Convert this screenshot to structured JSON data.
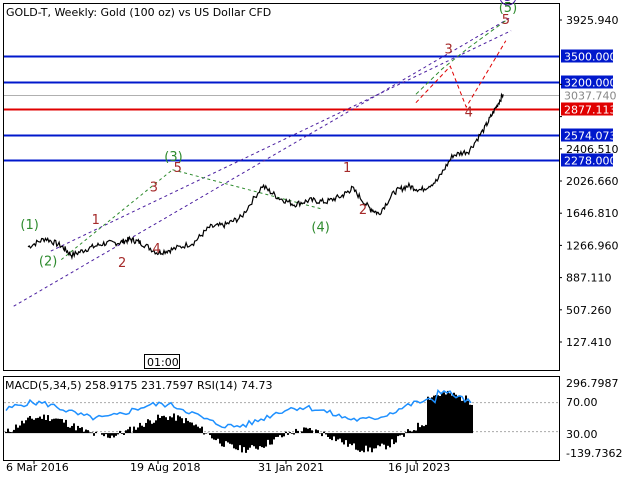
{
  "header": {
    "title": "GOLD-T, Weekly:  Gold (100 oz) vs US Dollar CFD"
  },
  "timer": "01:00",
  "colors": {
    "levels_blue": "#0018cc",
    "level_red": "#e00000",
    "wave_red": "#a52a2a",
    "wave_green": "#2e8b2e",
    "wave_purple": "#4b1fa0",
    "rsi": "#1e90ff",
    "macd": "#000000"
  },
  "chart_data": [
    {
      "type": "line",
      "title": "GOLD-T, Weekly:  Gold (100 oz) vs US Dollar CFD",
      "x_axis_labels": [
        "6 Mar 2016",
        "19 Aug 2018",
        "31 Jan 2021",
        "16 Jul 2023"
      ],
      "y_ticks": [
        3925.94,
        3166.81,
        2786.36,
        2406.51,
        2026.66,
        1646.81,
        1266.96,
        887.11,
        507.26,
        127.41
      ],
      "y_tick_labels": [
        "3925.940",
        "3166.810",
        "2786.360",
        "2406.510",
        "2026.660",
        "1646.810",
        "1266.960",
        "887.110",
        "507.260",
        "127.410"
      ],
      "ylim": [
        -100,
        4250
      ],
      "grid": false,
      "price_path": {
        "x": [
          2016.17,
          2016.5,
          2016.8,
          2017.0,
          2017.3,
          2017.6,
          2017.9,
          2018.1,
          2018.3,
          2018.62,
          2018.9,
          2019.3,
          2019.6,
          2019.9,
          2020.2,
          2020.6,
          2020.9,
          2021.2,
          2021.5,
          2021.8,
          2022.1,
          2022.3,
          2022.6,
          2022.8,
          2023.1,
          2023.35,
          2023.6,
          2023.9,
          2024.2,
          2024.5,
          2024.8,
          2025.0,
          2025.15
        ],
        "y": [
          1250,
          1350,
          1260,
          1150,
          1230,
          1290,
          1300,
          1340,
          1300,
          1180,
          1220,
          1300,
          1480,
          1510,
          1600,
          1970,
          1830,
          1750,
          1800,
          1780,
          1850,
          1940,
          1720,
          1640,
          1900,
          1970,
          1920,
          2030,
          2330,
          2380,
          2650,
          2880,
          3050
        ]
      },
      "levels": [
        {
          "label": "3500.000",
          "value": 3500,
          "color": "blue"
        },
        {
          "label": "3200.000",
          "value": 3200,
          "color": "blue"
        },
        {
          "label": "3037.740",
          "value": 3037.74,
          "color": "grey"
        },
        {
          "label": "2877.113",
          "value": 2877.113,
          "color": "red"
        },
        {
          "label": "2574.073",
          "value": 2574.073,
          "color": "blue"
        },
        {
          "label": "2278.000",
          "value": 2278,
          "color": "blue"
        }
      ],
      "wave_labels": [
        {
          "text": "(1)",
          "color": "green",
          "x": 2016.2,
          "y": 1460
        },
        {
          "text": "(2)",
          "color": "green",
          "x": 2016.55,
          "y": 1030
        },
        {
          "text": "1",
          "color": "red",
          "x": 2017.45,
          "y": 1520
        },
        {
          "text": "2",
          "color": "red",
          "x": 2017.95,
          "y": 1010
        },
        {
          "text": "3",
          "color": "red",
          "x": 2018.55,
          "y": 1900
        },
        {
          "text": "4",
          "color": "red",
          "x": 2018.6,
          "y": 1180
        },
        {
          "text": "(3)",
          "color": "green",
          "x": 2018.92,
          "y": 2260
        },
        {
          "text": "5",
          "color": "red",
          "x": 2019.0,
          "y": 2130
        },
        {
          "text": "(4)",
          "color": "green",
          "x": 2021.7,
          "y": 1430
        },
        {
          "text": "1",
          "color": "red",
          "x": 2022.2,
          "y": 2130
        },
        {
          "text": "2",
          "color": "red",
          "x": 2022.5,
          "y": 1640
        },
        {
          "text": "3",
          "color": "red",
          "x": 2024.12,
          "y": 3530
        },
        {
          "text": "4",
          "color": "red",
          "x": 2024.5,
          "y": 2790
        },
        {
          "text": "5",
          "color": "red",
          "x": 2025.2,
          "y": 3880
        },
        {
          "text": "(5)",
          "color": "green",
          "x": 2025.24,
          "y": 4020
        },
        {
          "text": "5",
          "color": "purple",
          "x": 2025.24,
          "y": 4150
        }
      ],
      "projections": [
        {
          "name": "",
          "color": "red",
          "points": [
            [
              2023.5,
              2950
            ],
            [
              2024.15,
              3380
            ],
            [
              2024.45,
              2900
            ],
            [
              2025.2,
              3680
            ]
          ]
        },
        {
          "name": "",
          "color": "green",
          "points": [
            [
              2023.5,
              3050
            ],
            [
              2024.0,
              3350
            ],
            [
              2024.5,
              3600
            ],
            [
              2025.2,
              3920
            ]
          ]
        }
      ],
      "trendlines": [
        {
          "name": "",
          "color": "purple",
          "points": [
            [
              2015.9,
              550
            ],
            [
              2025.3,
              3960
            ]
          ]
        },
        {
          "name": "",
          "color": "purple",
          "points": [
            [
              2016.6,
              1200
            ],
            [
              2025.3,
              3800
            ]
          ]
        },
        {
          "name": "",
          "color": "green",
          "points": [
            [
              2016.8,
              1100
            ],
            [
              2018.9,
              2160
            ]
          ]
        },
        {
          "name": "",
          "color": "green",
          "points": [
            [
              2018.9,
              2160
            ],
            [
              2021.7,
              1700
            ]
          ]
        }
      ]
    },
    {
      "type": "area",
      "title": "MACD(5,34,5) 258.9175 231.7597 RSI(14) 74.73",
      "indicators": [
        {
          "name": "MACD(5,34,5)",
          "values": [
            258.9175,
            231.7597
          ]
        },
        {
          "name": "RSI(14)",
          "values": [
            74.73
          ]
        }
      ],
      "y_tick_labels": [
        "296.7987",
        "70.00",
        "30.00",
        "-139.7362"
      ],
      "rsi_levels": [
        70,
        30
      ],
      "macd_range": [
        -139.7362,
        296.7987
      ]
    }
  ]
}
